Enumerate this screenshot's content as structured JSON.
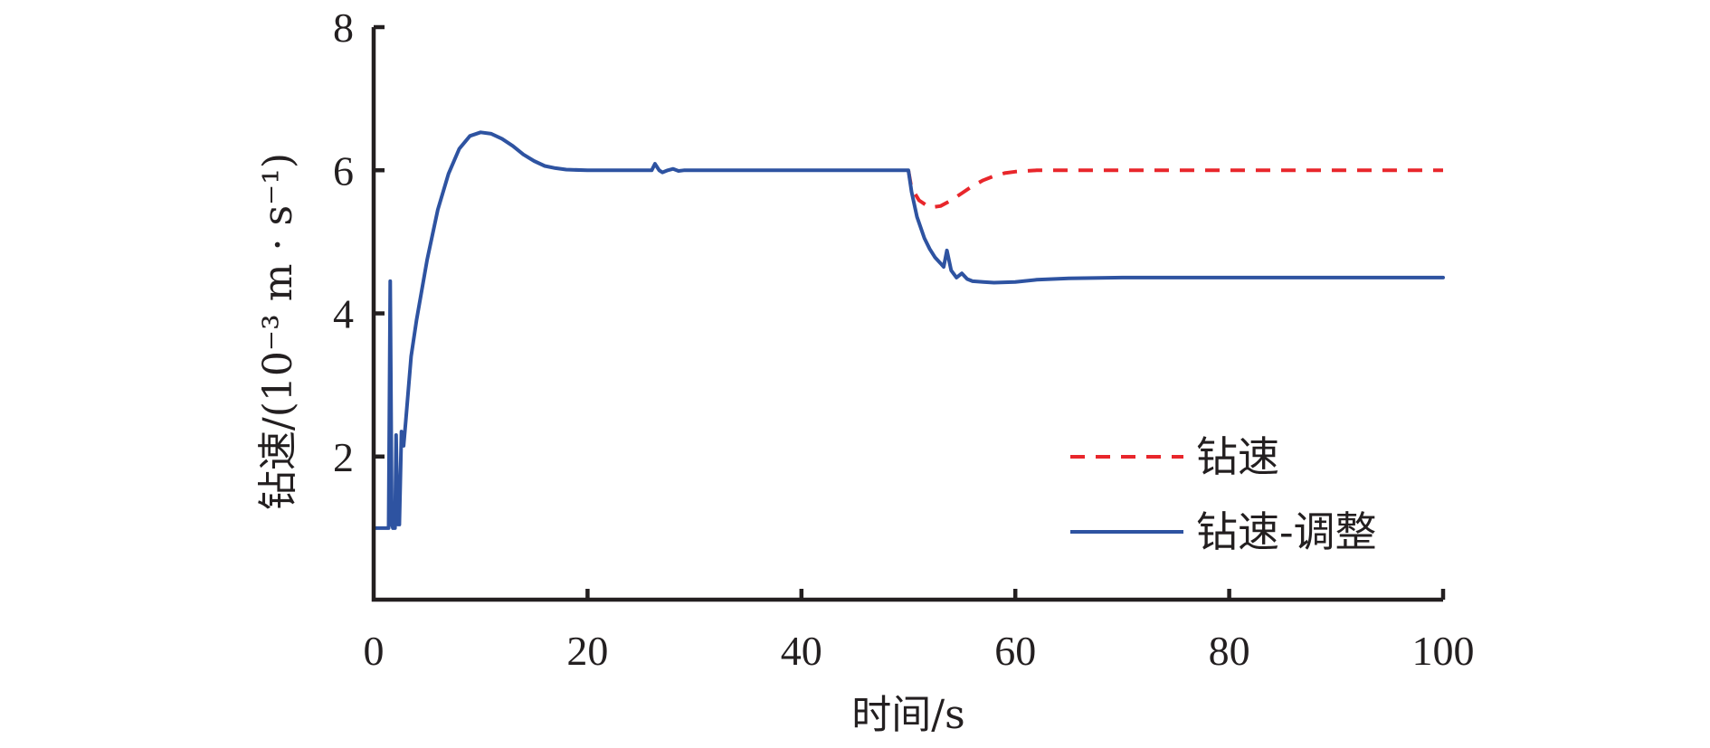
{
  "chart_data": {
    "type": "line",
    "xlabel": "时间/s",
    "ylabel": "钻速/(10⁻³ m · s⁻¹)",
    "xlim": [
      0,
      100
    ],
    "ylim": [
      0,
      8
    ],
    "xticks": [
      "0",
      "20",
      "40",
      "60",
      "80",
      "100"
    ],
    "yticks": [
      "2",
      "4",
      "6",
      "8"
    ],
    "xtick_values": [
      0,
      20,
      40,
      60,
      80,
      100
    ],
    "ytick_values": [
      2,
      4,
      6,
      8
    ],
    "grid": false,
    "legend_position": "lower-right",
    "series": [
      {
        "name": "钻速",
        "color": "#e8262b",
        "dash": "dashed",
        "points": [
          [
            50.0,
            6.0
          ],
          [
            50.3,
            5.75
          ],
          [
            51.0,
            5.58
          ],
          [
            52.0,
            5.48
          ],
          [
            53.0,
            5.5
          ],
          [
            54.0,
            5.58
          ],
          [
            55.0,
            5.68
          ],
          [
            56.0,
            5.78
          ],
          [
            57.0,
            5.86
          ],
          [
            58.0,
            5.92
          ],
          [
            59.0,
            5.96
          ],
          [
            60.0,
            5.98
          ],
          [
            62.0,
            6.0
          ],
          [
            65.0,
            6.0
          ],
          [
            70.0,
            6.0
          ],
          [
            80.0,
            6.0
          ],
          [
            90.0,
            6.0
          ],
          [
            100.0,
            6.0
          ]
        ]
      },
      {
        "name": "钻速-调整",
        "color": "#2e53a1",
        "dash": "solid",
        "points": [
          [
            0.0,
            1.0
          ],
          [
            1.4,
            1.0
          ],
          [
            1.55,
            4.45
          ],
          [
            1.7,
            1.05
          ],
          [
            1.8,
            1.0
          ],
          [
            2.0,
            1.0
          ],
          [
            2.1,
            2.3
          ],
          [
            2.25,
            1.05
          ],
          [
            2.4,
            1.05
          ],
          [
            2.6,
            2.35
          ],
          [
            2.8,
            2.15
          ],
          [
            3.0,
            2.5
          ],
          [
            3.5,
            3.4
          ],
          [
            4.0,
            3.9
          ],
          [
            5.0,
            4.75
          ],
          [
            6.0,
            5.45
          ],
          [
            7.0,
            5.95
          ],
          [
            8.0,
            6.3
          ],
          [
            9.0,
            6.48
          ],
          [
            10.0,
            6.53
          ],
          [
            11.0,
            6.51
          ],
          [
            12.0,
            6.44
          ],
          [
            13.0,
            6.34
          ],
          [
            14.0,
            6.22
          ],
          [
            15.0,
            6.13
          ],
          [
            16.0,
            6.06
          ],
          [
            17.0,
            6.03
          ],
          [
            18.0,
            6.01
          ],
          [
            20.0,
            6.0
          ],
          [
            24.0,
            6.0
          ],
          [
            26.0,
            6.0
          ],
          [
            26.3,
            6.09
          ],
          [
            26.7,
            6.0
          ],
          [
            27.0,
            5.97
          ],
          [
            27.5,
            6.0
          ],
          [
            28.0,
            6.02
          ],
          [
            28.5,
            5.99
          ],
          [
            29.0,
            6.0
          ],
          [
            30.0,
            6.0
          ],
          [
            40.0,
            6.0
          ],
          [
            50.0,
            6.0
          ],
          [
            50.3,
            5.7
          ],
          [
            50.8,
            5.35
          ],
          [
            51.5,
            5.05
          ],
          [
            52.0,
            4.9
          ],
          [
            52.5,
            4.78
          ],
          [
            53.0,
            4.7
          ],
          [
            53.3,
            4.65
          ],
          [
            53.6,
            4.88
          ],
          [
            54.0,
            4.6
          ],
          [
            54.5,
            4.5
          ],
          [
            55.0,
            4.56
          ],
          [
            55.5,
            4.48
          ],
          [
            56.0,
            4.45
          ],
          [
            57.0,
            4.44
          ],
          [
            58.0,
            4.43
          ],
          [
            60.0,
            4.44
          ],
          [
            62.0,
            4.47
          ],
          [
            65.0,
            4.49
          ],
          [
            70.0,
            4.5
          ],
          [
            80.0,
            4.5
          ],
          [
            90.0,
            4.5
          ],
          [
            100.0,
            4.5
          ]
        ]
      }
    ]
  }
}
